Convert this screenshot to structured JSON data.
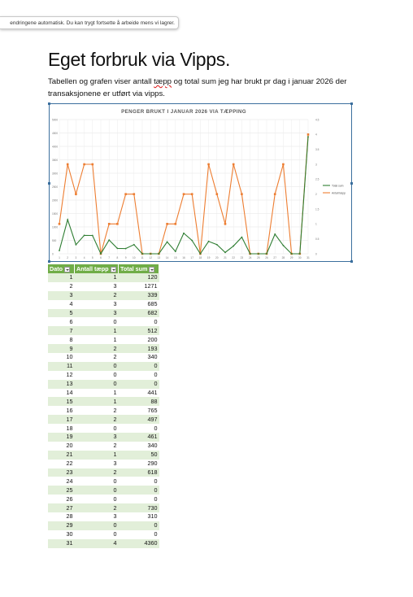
{
  "toast": {
    "text": "endringene automatisk. Du kan trygt fortsette å arbeide mens vi lagrer."
  },
  "document": {
    "title": "Eget forbruk via Vipps.",
    "para_before": "Tabellen og grafen viser antall ",
    "para_flagged": "tæpp",
    "para_after": " og total sum jeg har brukt pr dag i januar 2026 der transaksjonene er utført via vipps."
  },
  "table": {
    "headers": [
      "Dato",
      "Antall tæpp",
      "Total sum"
    ]
  },
  "colors": {
    "sum": "#2e7d32",
    "antall": "#ed7d31",
    "header": "#70ad47",
    "band": "#e2efd9"
  },
  "chart_data": {
    "type": "line",
    "title": "PENGER BRUKT I JANUAR 2026 VIA TÆPPING",
    "categories": [
      1,
      2,
      3,
      4,
      5,
      6,
      7,
      8,
      9,
      10,
      11,
      12,
      13,
      14,
      15,
      16,
      17,
      18,
      19,
      20,
      21,
      22,
      23,
      24,
      25,
      26,
      27,
      28,
      29,
      30,
      31
    ],
    "series": [
      {
        "name": "Total sum",
        "axis": "left",
        "values": [
          120,
          1271,
          339,
          685,
          682,
          0,
          512,
          200,
          193,
          340,
          0,
          0,
          0,
          441,
          88,
          765,
          497,
          0,
          461,
          340,
          50,
          290,
          618,
          0,
          0,
          0,
          730,
          310,
          0,
          0,
          4360
        ]
      },
      {
        "name": "Antall tæpp",
        "axis": "right",
        "values": [
          1,
          3,
          2,
          3,
          3,
          0,
          1,
          1,
          2,
          2,
          0,
          0,
          0,
          1,
          1,
          2,
          2,
          0,
          3,
          2,
          1,
          3,
          2,
          0,
          0,
          0,
          2,
          3,
          0,
          0,
          4
        ]
      }
    ],
    "ylim_left": [
      0,
      5000
    ],
    "yticks_left": [
      0,
      500,
      1000,
      1500,
      2000,
      2500,
      3000,
      3500,
      4000,
      4500,
      5000
    ],
    "ylim_right": [
      0,
      4.5
    ],
    "yticks_right": [
      0,
      0.5,
      1,
      1.5,
      2,
      2.5,
      3,
      3.5,
      4,
      4.5
    ],
    "grid": true,
    "legend_position": "right"
  }
}
